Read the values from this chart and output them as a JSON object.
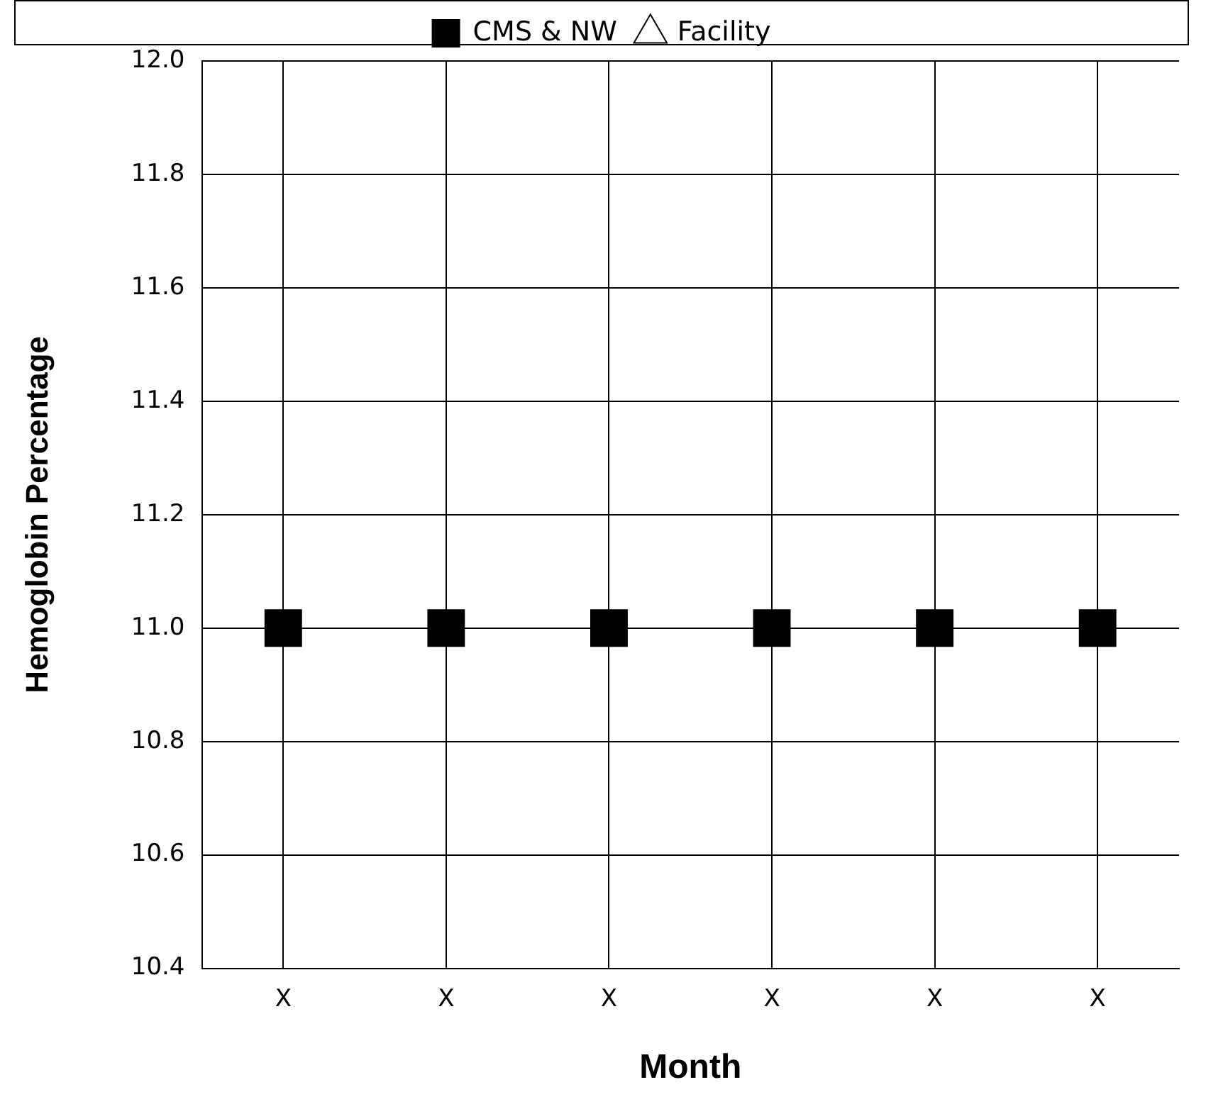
{
  "chart_data": {
    "type": "scatter",
    "xlabel": "Month",
    "ylabel": "Hemoglobin Percentage",
    "categories": [
      "X",
      "X",
      "X",
      "X",
      "X",
      "X"
    ],
    "series": [
      {
        "name": "CMS & NW",
        "color": "#000000",
        "marker": "square",
        "values": [
          11.0,
          11.0,
          11.0,
          11.0,
          11.0,
          11.0
        ]
      },
      {
        "name": "Facility",
        "color": "#000000",
        "marker": "triangle",
        "values": [
          null,
          null,
          null,
          null,
          null,
          null
        ]
      }
    ],
    "ylim": [
      10.4,
      12.0
    ],
    "yticks": [
      {
        "value": 10.4,
        "label": "10.4"
      },
      {
        "value": 10.6,
        "label": "10.6"
      },
      {
        "value": 10.8,
        "label": "10.8"
      },
      {
        "value": 11.0,
        "label": "11.0"
      },
      {
        "value": 11.2,
        "label": "11.2"
      },
      {
        "value": 11.4,
        "label": "11.4"
      },
      {
        "value": 11.6,
        "label": "11.6"
      },
      {
        "value": 11.8,
        "label": "11.8"
      },
      {
        "value": 12.0,
        "label": "12.0"
      }
    ],
    "grid": true,
    "legend": "top"
  }
}
